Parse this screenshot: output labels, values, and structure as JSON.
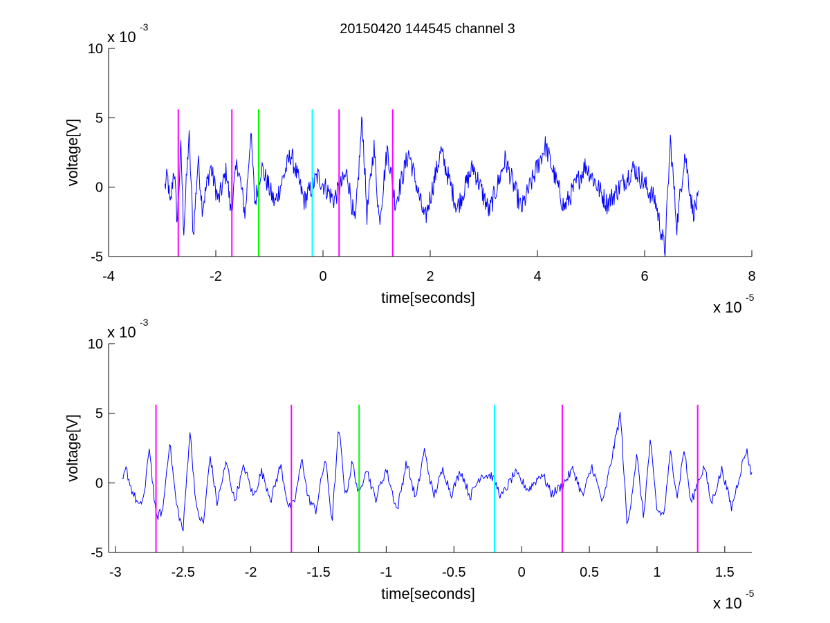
{
  "title": "20150420 144545 channel 3",
  "colors": {
    "trace": "#0000ff",
    "magenta": "#ff00ff",
    "green": "#00ff00",
    "cyan": "#00ffff",
    "axis": "#000000"
  },
  "chart_data": [
    {
      "type": "line",
      "xlabel": "time[seconds]",
      "ylabel": "voltage[V]",
      "x_multiplier": "x 10",
      "x_exponent": "-5",
      "y_multiplier": "x 10",
      "y_exponent": "-3",
      "xlim": [
        -4,
        8
      ],
      "ylim": [
        -5,
        10
      ],
      "xticks": [
        -4,
        -2,
        0,
        2,
        4,
        6,
        8
      ],
      "xtick_labels": [
        "-4",
        "-2",
        "0",
        "2",
        "4",
        "6",
        "8"
      ],
      "yticks": [
        -5,
        0,
        5,
        10
      ],
      "ytick_labels": [
        "-5",
        "0",
        "5",
        "10"
      ],
      "grid": false,
      "trace_x_range": [
        -2.95,
        7.0
      ],
      "markers": [
        {
          "x": -2.7,
          "color": "magenta",
          "ymin": -5,
          "ymax": 5.6
        },
        {
          "x": -1.7,
          "color": "magenta",
          "ymin": -5,
          "ymax": 5.6
        },
        {
          "x": -1.2,
          "color": "green",
          "ymin": -5,
          "ymax": 5.6
        },
        {
          "x": -0.2,
          "color": "cyan",
          "ymin": -5,
          "ymax": 5.6
        },
        {
          "x": 0.3,
          "color": "magenta",
          "ymin": -5,
          "ymax": 5.6
        },
        {
          "x": 1.3,
          "color": "magenta",
          "ymin": -5,
          "ymax": 5.6
        }
      ],
      "trace_keypoints": [
        [
          -2.95,
          0
        ],
        [
          -2.9,
          0.8
        ],
        [
          -2.85,
          -1.5
        ],
        [
          -2.78,
          1.5
        ],
        [
          -2.72,
          -2.5
        ],
        [
          -2.65,
          2.9
        ],
        [
          -2.6,
          -3.2
        ],
        [
          -2.5,
          3.8
        ],
        [
          -2.42,
          -3.5
        ],
        [
          -2.33,
          2.0
        ],
        [
          -2.25,
          -1.5
        ],
        [
          -2.1,
          1.5
        ],
        [
          -1.95,
          -1.0
        ],
        [
          -1.8,
          1.2
        ],
        [
          -1.72,
          -1.8
        ],
        [
          -1.6,
          1.8
        ],
        [
          -1.45,
          -2.0
        ],
        [
          -1.35,
          4.0
        ],
        [
          -1.27,
          -1.2
        ],
        [
          -1.15,
          1.5
        ],
        [
          -0.9,
          -1.2
        ],
        [
          -0.6,
          2.4
        ],
        [
          -0.35,
          -1.0
        ],
        [
          -0.1,
          0.8
        ],
        [
          0.2,
          -0.9
        ],
        [
          0.45,
          1.0
        ],
        [
          0.6,
          -2.8
        ],
        [
          0.73,
          5.0
        ],
        [
          0.82,
          -2.0
        ],
        [
          0.95,
          3.0
        ],
        [
          1.05,
          -2.5
        ],
        [
          1.2,
          2.8
        ],
        [
          1.35,
          -1.2
        ],
        [
          1.6,
          2.5
        ],
        [
          1.9,
          -2.4
        ],
        [
          2.2,
          2.6
        ],
        [
          2.5,
          -1.5
        ],
        [
          2.8,
          1.5
        ],
        [
          3.1,
          -1.8
        ],
        [
          3.4,
          2.0
        ],
        [
          3.7,
          -1.6
        ],
        [
          4.15,
          3.0
        ],
        [
          4.5,
          -1.5
        ],
        [
          4.9,
          1.6
        ],
        [
          5.3,
          -1.2
        ],
        [
          5.8,
          1.4
        ],
        [
          6.2,
          -1.0
        ],
        [
          6.38,
          -4.6
        ],
        [
          6.48,
          3.4
        ],
        [
          6.6,
          -2.8
        ],
        [
          6.75,
          2.5
        ],
        [
          6.9,
          -1.8
        ],
        [
          7.0,
          -1.0
        ]
      ]
    },
    {
      "type": "line",
      "xlabel": "time[seconds]",
      "ylabel": "voltage[V]",
      "x_multiplier": "x 10",
      "x_exponent": "-5",
      "y_multiplier": "x 10",
      "y_exponent": "-3",
      "xlim": [
        -3.05,
        1.7
      ],
      "ylim": [
        -5,
        10
      ],
      "xticks": [
        -3,
        -2.5,
        -2,
        -1.5,
        -1,
        -0.5,
        0,
        0.5,
        1,
        1.5
      ],
      "xtick_labels": [
        "-3",
        "-2.5",
        "-2",
        "-1.5",
        "-1",
        "-0.5",
        "0",
        "0.5",
        "1",
        "1.5"
      ],
      "yticks": [
        -5,
        0,
        5,
        10
      ],
      "ytick_labels": [
        "-5",
        "0",
        "5",
        "10"
      ],
      "grid": false,
      "trace_x_range": [
        -2.95,
        1.7
      ],
      "markers": [
        {
          "x": -2.7,
          "color": "magenta",
          "ymin": -5,
          "ymax": 5.6
        },
        {
          "x": -1.7,
          "color": "magenta",
          "ymin": -5,
          "ymax": 5.6
        },
        {
          "x": -1.2,
          "color": "green",
          "ymin": -5,
          "ymax": 5.6
        },
        {
          "x": -0.2,
          "color": "cyan",
          "ymin": -5,
          "ymax": 5.6
        },
        {
          "x": 0.3,
          "color": "magenta",
          "ymin": -5,
          "ymax": 5.6
        },
        {
          "x": 1.3,
          "color": "magenta",
          "ymin": -5,
          "ymax": 5.6
        }
      ],
      "trace_keypoints": [
        [
          -2.95,
          0.0
        ],
        [
          -2.92,
          1.0
        ],
        [
          -2.88,
          -0.5
        ],
        [
          -2.82,
          -1.8
        ],
        [
          -2.78,
          -0.5
        ],
        [
          -2.75,
          2.7
        ],
        [
          -2.7,
          -2.5
        ],
        [
          -2.65,
          -2.0
        ],
        [
          -2.6,
          3.0
        ],
        [
          -2.55,
          -1.5
        ],
        [
          -2.5,
          -3.5
        ],
        [
          -2.45,
          3.8
        ],
        [
          -2.4,
          -2.0
        ],
        [
          -2.35,
          -3.0
        ],
        [
          -2.3,
          2.0
        ],
        [
          -2.25,
          -1.5
        ],
        [
          -2.18,
          1.5
        ],
        [
          -2.12,
          -1.3
        ],
        [
          -2.05,
          1.2
        ],
        [
          -1.98,
          -1.0
        ],
        [
          -1.92,
          0.8
        ],
        [
          -1.85,
          -1.2
        ],
        [
          -1.78,
          1.3
        ],
        [
          -1.72,
          -1.8
        ],
        [
          -1.68,
          -1.5
        ],
        [
          -1.62,
          1.8
        ],
        [
          -1.58,
          -1.0
        ],
        [
          -1.52,
          -2.0
        ],
        [
          -1.45,
          1.8
        ],
        [
          -1.4,
          -2.8
        ],
        [
          -1.35,
          4.0
        ],
        [
          -1.3,
          -1.0
        ],
        [
          -1.25,
          1.5
        ],
        [
          -1.2,
          -1.0
        ],
        [
          -1.15,
          1.2
        ],
        [
          -1.08,
          -1.2
        ],
        [
          -1.0,
          1.0
        ],
        [
          -0.92,
          -2.0
        ],
        [
          -0.85,
          1.5
        ],
        [
          -0.78,
          -1.2
        ],
        [
          -0.72,
          2.4
        ],
        [
          -0.65,
          -1.0
        ],
        [
          -0.58,
          1.0
        ],
        [
          -0.52,
          -0.8
        ],
        [
          -0.45,
          0.9
        ],
        [
          -0.38,
          -1.0
        ],
        [
          -0.3,
          0.6
        ],
        [
          -0.22,
          0.5
        ],
        [
          -0.15,
          -1.0
        ],
        [
          -0.05,
          0.7
        ],
        [
          0.05,
          -0.5
        ],
        [
          0.15,
          0.7
        ],
        [
          0.22,
          -0.8
        ],
        [
          0.3,
          -0.2
        ],
        [
          0.38,
          1.0
        ],
        [
          0.45,
          -1.0
        ],
        [
          0.52,
          1.2
        ],
        [
          0.6,
          -1.5
        ],
        [
          0.68,
          2.5
        ],
        [
          0.73,
          5.0
        ],
        [
          0.78,
          -3.3
        ],
        [
          0.85,
          2.0
        ],
        [
          0.9,
          -2.5
        ],
        [
          0.95,
          3.0
        ],
        [
          1.0,
          -2.0
        ],
        [
          1.05,
          -2.3
        ],
        [
          1.1,
          2.2
        ],
        [
          1.15,
          -1.0
        ],
        [
          1.2,
          2.5
        ],
        [
          1.25,
          -1.5
        ],
        [
          1.3,
          0.0
        ],
        [
          1.35,
          1.2
        ],
        [
          1.4,
          -1.5
        ],
        [
          1.48,
          1.0
        ],
        [
          1.55,
          -1.8
        ],
        [
          1.62,
          1.0
        ],
        [
          1.66,
          2.4
        ],
        [
          1.7,
          0.5
        ]
      ]
    }
  ]
}
